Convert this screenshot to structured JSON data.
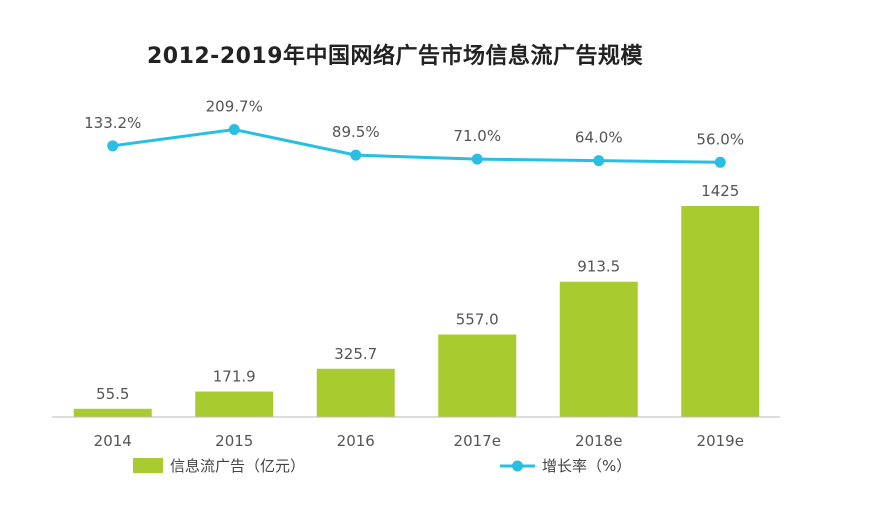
{
  "chart_data": {
    "type": "bar",
    "title": "2012-2019年中国网络广告市场信息流广告规模",
    "categories": [
      "2014",
      "2015",
      "2016",
      "2017e",
      "2018e",
      "2019e"
    ],
    "series": [
      {
        "name": "信息流广告（亿元）",
        "type": "bar",
        "values": [
          55.5,
          171.9,
          325.7,
          557.0,
          913.5,
          1425
        ],
        "labels": [
          "55.5",
          "171.9",
          "325.7",
          "557.0",
          "913.5",
          "1425"
        ],
        "color": "#a8cc2f"
      },
      {
        "name": "增长率（%）",
        "type": "line",
        "values": [
          133.2,
          209.7,
          89.5,
          71.0,
          64.0,
          56.0
        ],
        "labels": [
          "133.2%",
          "209.7%",
          "89.5%",
          "71.0%",
          "64.0%",
          "56.0%"
        ],
        "color": "#29bfe3"
      }
    ],
    "legend_position": "bottom",
    "grid": false
  }
}
